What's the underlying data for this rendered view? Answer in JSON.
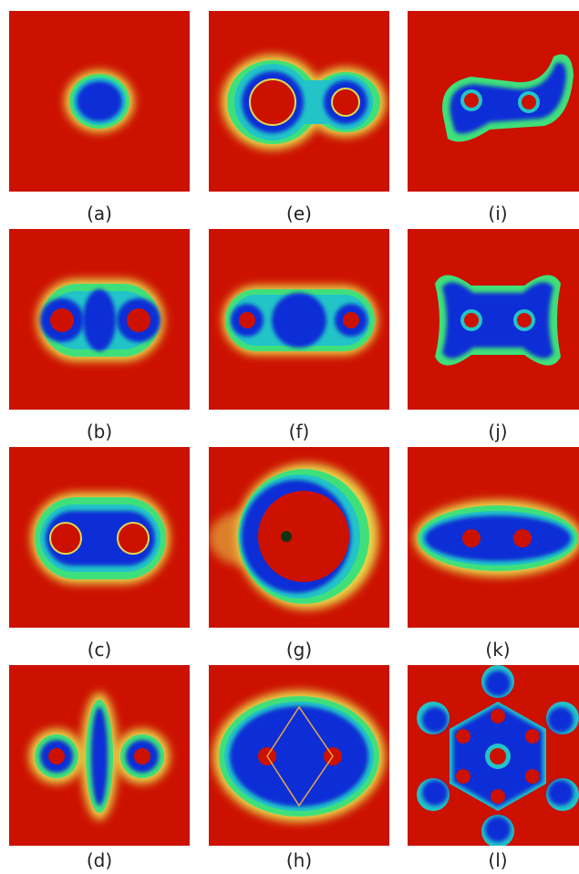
{
  "panels": [
    {
      "id": "a",
      "label": "(a)"
    },
    {
      "id": "e",
      "label": "(e)"
    },
    {
      "id": "i",
      "label": "(i)"
    },
    {
      "id": "b",
      "label": "(b)"
    },
    {
      "id": "f",
      "label": "(f)"
    },
    {
      "id": "j",
      "label": "(j)"
    },
    {
      "id": "c",
      "label": "(c)"
    },
    {
      "id": "g",
      "label": "(g)"
    },
    {
      "id": "k",
      "label": "(k)"
    },
    {
      "id": "d",
      "label": "(d)"
    },
    {
      "id": "h",
      "label": "(h)"
    },
    {
      "id": "l",
      "label": "(l)"
    }
  ],
  "colors": {
    "background": "#cc1100",
    "blob": "#0a2fd6",
    "cyan": "#22c4c8",
    "green": "#3fe07a",
    "yellow": "#e8d84a"
  }
}
